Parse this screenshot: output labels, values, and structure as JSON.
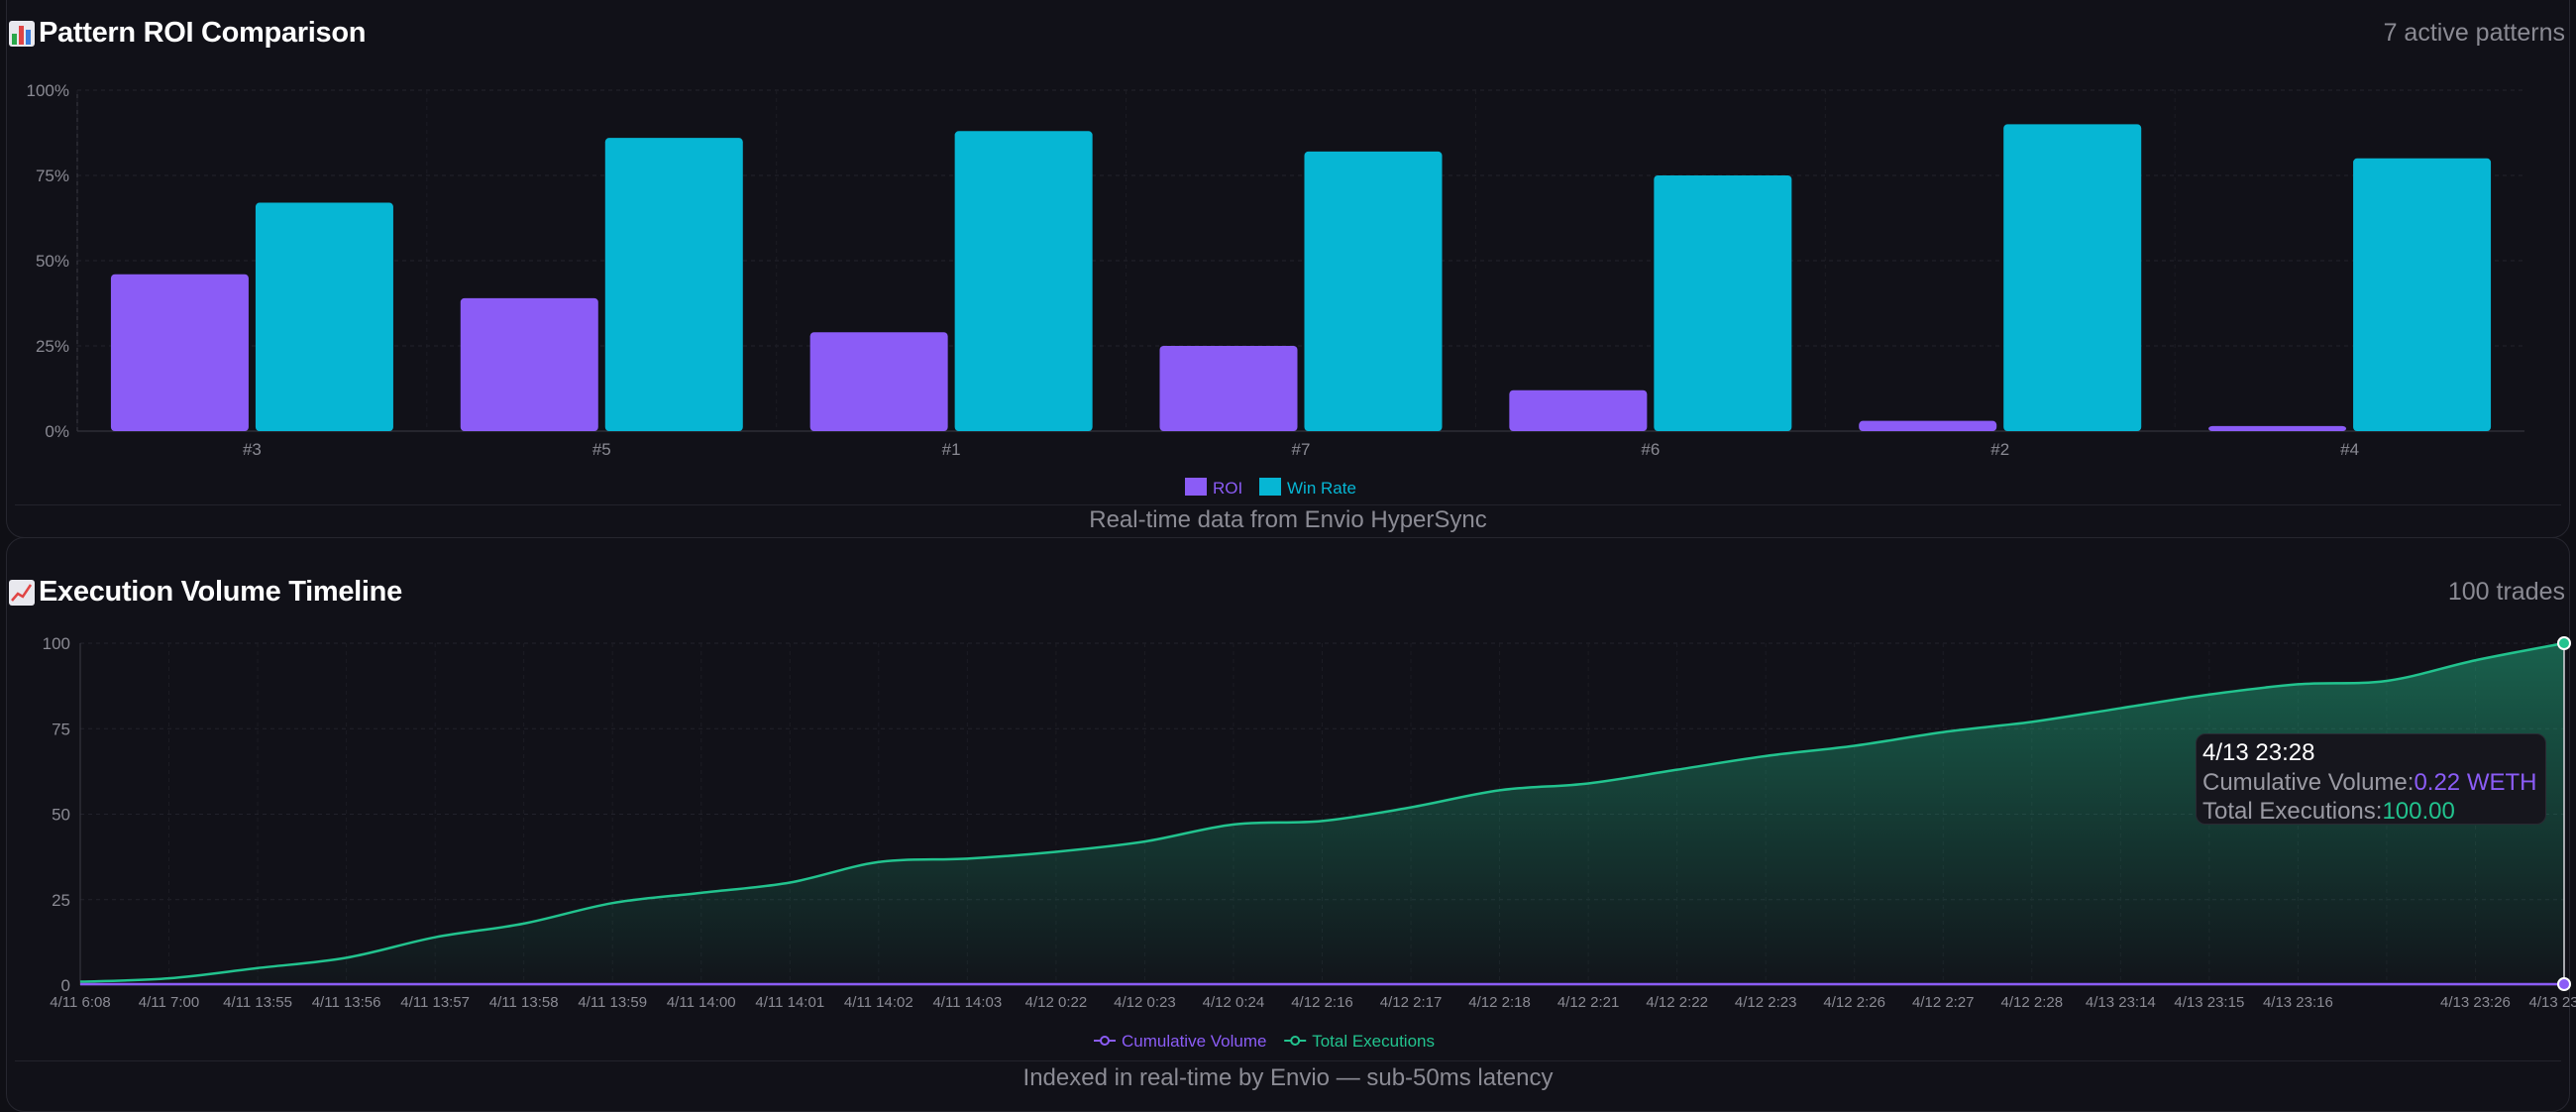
{
  "roi_panel": {
    "title": "Pattern ROI Comparison",
    "meta": "7 active patterns",
    "footer": "Real-time data from Envio HyperSync",
    "icon": "bar-chart-icon"
  },
  "volume_panel": {
    "title": "Execution Volume Timeline",
    "meta": "100 trades",
    "footer": "Indexed in real-time by Envio — sub-50ms latency",
    "icon": "line-chart-icon"
  },
  "tooltip": {
    "title": "4/13 23:28",
    "volume_label": "Cumulative Volume:",
    "volume_value": "0.22 WETH",
    "exec_label": "Total Executions:",
    "exec_value": "100.00"
  },
  "chart_data": [
    {
      "type": "bar",
      "categories": [
        "#3",
        "#5",
        "#1",
        "#7",
        "#6",
        "#2",
        "#4"
      ],
      "series": [
        {
          "name": "ROI",
          "color": "#8b5cf6",
          "values": [
            46,
            39,
            29,
            25,
            12,
            3,
            1.5
          ]
        },
        {
          "name": "Win Rate",
          "color": "#06b6d4",
          "values": [
            67,
            86,
            88,
            82,
            75,
            90,
            80
          ]
        }
      ],
      "yticks": [
        "0%",
        "25%",
        "50%",
        "75%",
        "100%"
      ],
      "ylim": [
        0,
        100
      ],
      "grid": true,
      "legend": "bottom-center"
    },
    {
      "type": "area",
      "x": [
        "4/11 6:08",
        "4/11 7:00",
        "4/11 13:55",
        "4/11 13:56",
        "4/11 13:57",
        "4/11 13:58",
        "4/11 13:59",
        "4/11 14:00",
        "4/11 14:01",
        "4/11 14:02",
        "4/11 14:03",
        "4/12 0:22",
        "4/12 0:23",
        "4/12 0:24",
        "4/12 2:16",
        "4/12 2:17",
        "4/12 2:18",
        "4/12 2:21",
        "4/12 2:22",
        "4/12 2:23",
        "4/12 2:26",
        "4/12 2:27",
        "4/12 2:28",
        "4/13 23:14",
        "4/13 23:15",
        "4/13 23:16",
        "",
        "4/13 23:26",
        "4/13 23:28"
      ],
      "series": [
        {
          "name": "Cumulative Volume",
          "color": "#8b5cf6",
          "values": [
            0.0,
            0.0,
            0.0,
            0.0,
            0.0,
            0.0,
            0.0,
            0.0,
            0.0,
            0.0,
            0.0,
            0.0,
            0.0,
            0.0,
            0.0,
            0.0,
            0.0,
            0.0,
            0.0,
            0.0,
            0.0,
            0.0,
            0.0,
            0.0,
            0.0,
            0.0,
            0.0,
            0.0,
            0.22
          ]
        },
        {
          "name": "Total Executions",
          "color": "#22c38e",
          "values": [
            1,
            2,
            5,
            8,
            14,
            18,
            24,
            27,
            30,
            36,
            37,
            39,
            42,
            47,
            48,
            52,
            57,
            59,
            63,
            67,
            70,
            74,
            77,
            81,
            85,
            88,
            89,
            95,
            100
          ]
        }
      ],
      "yticks": [
        "0",
        "25",
        "50",
        "75",
        "100"
      ],
      "ylim": [
        0,
        100
      ],
      "grid": true,
      "legend": "bottom-center"
    }
  ]
}
